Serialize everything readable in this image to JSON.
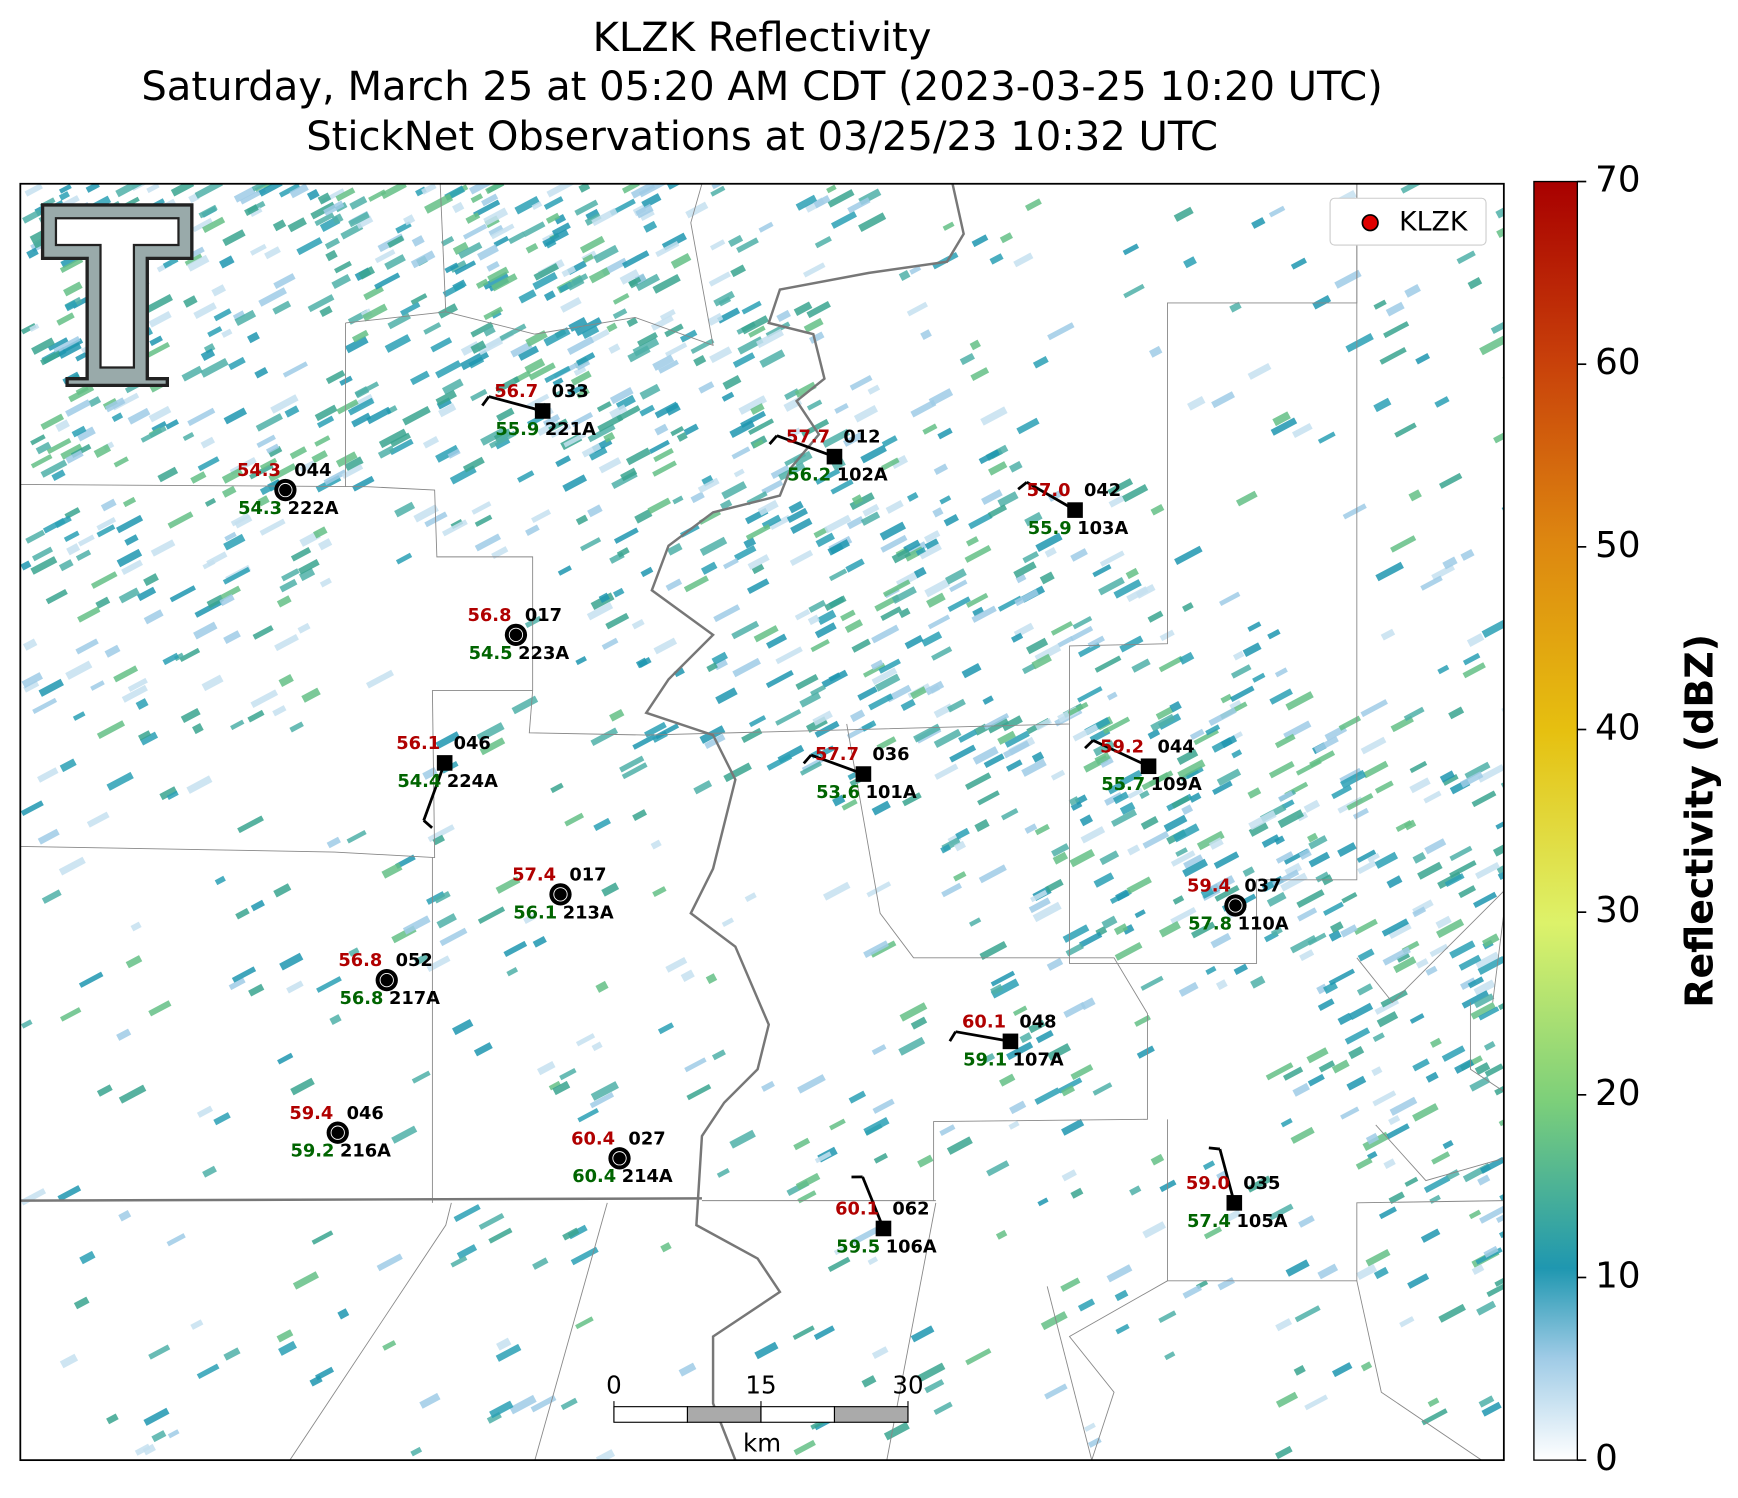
{
  "header": {
    "title": "KLZK Reflectivity",
    "subtitle": "Saturday, March 25 at 05:20 AM CDT (2023-03-25 10:20 UTC)",
    "subtitle2": "StickNet Observations at 03/25/23 10:32 UTC"
  },
  "legend": {
    "label": "KLZK",
    "color": "#e00000"
  },
  "colorbar": {
    "label": "Reflectivity (dBZ)",
    "lim": [
      0,
      70
    ],
    "ticks": [
      0,
      10,
      20,
      30,
      40,
      50,
      60,
      70
    ]
  },
  "scale_bar": {
    "lim": [
      0,
      30
    ],
    "ticks": [
      0,
      15,
      30
    ],
    "unit": "km"
  },
  "stations": [
    {
      "temperature": "56.7",
      "dewpoint": "55.9",
      "top_id": "033",
      "id": "221A"
    },
    {
      "temperature": "57.7",
      "dewpoint": "56.2",
      "top_id": "012",
      "id": "102A"
    },
    {
      "temperature": "54.3",
      "dewpoint": "54.3",
      "top_id": "044",
      "id": "222A"
    },
    {
      "temperature": "57.0",
      "dewpoint": "55.9",
      "top_id": "042",
      "id": "103A"
    },
    {
      "temperature": "56.8",
      "dewpoint": "54.5",
      "top_id": "017",
      "id": "223A"
    },
    {
      "temperature": "56.1",
      "dewpoint": "54.4",
      "top_id": "046",
      "id": "224A"
    },
    {
      "temperature": "57.7",
      "dewpoint": "53.6",
      "top_id": "036",
      "id": "101A"
    },
    {
      "temperature": "59.2",
      "dewpoint": "55.7",
      "top_id": "044",
      "id": "109A"
    },
    {
      "temperature": "57.4",
      "dewpoint": "56.1",
      "top_id": "017",
      "id": "213A"
    },
    {
      "temperature": "59.4",
      "dewpoint": "57.8",
      "top_id": "037",
      "id": "110A"
    },
    {
      "temperature": "56.8",
      "dewpoint": "56.8",
      "top_id": "052",
      "id": "217A"
    },
    {
      "temperature": "60.1",
      "dewpoint": "59.1",
      "top_id": "048",
      "id": "107A"
    },
    {
      "temperature": "59.4",
      "dewpoint": "59.2",
      "top_id": "046",
      "id": "216A"
    },
    {
      "temperature": "60.4",
      "dewpoint": "60.4",
      "top_id": "027",
      "id": "214A"
    },
    {
      "temperature": "60.1",
      "dewpoint": "59.5",
      "top_id": "062",
      "id": "106A"
    },
    {
      "temperature": "59.0",
      "dewpoint": "57.4",
      "top_id": "035",
      "id": "105A"
    }
  ]
}
